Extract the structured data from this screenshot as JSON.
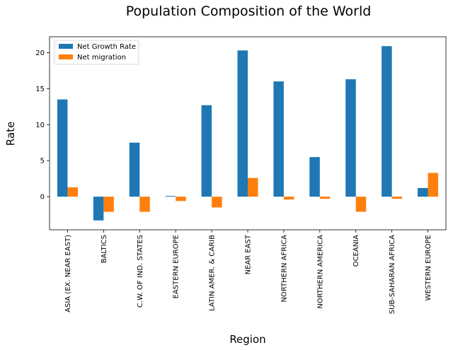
{
  "chart_data": {
    "type": "bar",
    "title": "Population Composition of the World",
    "xlabel": "Region",
    "ylabel": "Rate",
    "categories": [
      "ASIA (EX. NEAR EAST)",
      "BALTICS",
      "C.W. OF IND. STATES",
      "EASTERN EUROPE",
      "LATIN AMER. & CARIB",
      "NEAR EAST",
      "NORTHERN AFRICA",
      "NORTHERN AMERICA",
      "OCEANIA",
      "SUB-SAHARAN AFRICA",
      "WESTERN EUROPE"
    ],
    "series": [
      {
        "name": "Net Growth Rate",
        "color": "#1f77b4",
        "values": [
          13.5,
          -3.3,
          7.5,
          0.1,
          12.7,
          20.3,
          16.0,
          5.5,
          16.3,
          20.9,
          1.2
        ]
      },
      {
        "name": "Net migration",
        "color": "#ff7f0e",
        "values": [
          1.3,
          -2.1,
          -2.1,
          -0.6,
          -1.5,
          2.6,
          -0.4,
          -0.3,
          -2.1,
          -0.3,
          3.3
        ]
      }
    ],
    "ylim": [
      -4.6,
      22.2
    ],
    "yticks": [
      0,
      5,
      10,
      15,
      20
    ],
    "legend": "upper-left",
    "grid": false
  }
}
